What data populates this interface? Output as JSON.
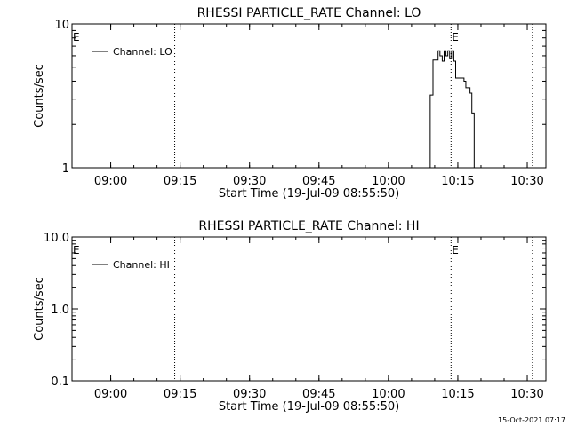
{
  "chart_data": [
    {
      "type": "line",
      "title": "RHESSI PARTICLE_RATE Channel: LO",
      "xlabel": "Start Time (19-Jul-09 08:55:50)",
      "ylabel": "Counts/sec",
      "y_scale": "log",
      "ylim": [
        1,
        10
      ],
      "xlim_minutes_from_start": [
        -4.2,
        98.2
      ],
      "x_tick_labels": [
        "09:00",
        "09:15",
        "09:30",
        "09:45",
        "10:00",
        "10:15",
        "10:30"
      ],
      "x_ticks_minutes": [
        4.17,
        19.17,
        34.17,
        49.17,
        64.17,
        79.17,
        94.17
      ],
      "y_tick_labels": [
        "1",
        "10"
      ],
      "y_ticks": [
        1,
        10
      ],
      "vlines_dotted_minutes": [
        18.0,
        77.7,
        95.3
      ],
      "event_markers": [
        {
          "label": "E",
          "x": -4.2
        },
        {
          "label": "E",
          "x": 77.7
        }
      ],
      "legend": {
        "label": "Channel: LO",
        "placement": "top-left"
      },
      "series": [
        {
          "name": "Channel: LO",
          "x": [
            72.5,
            73.2,
            73.8,
            74.4,
            74.9,
            75.3,
            75.8,
            76.2,
            76.6,
            77.0,
            77.4,
            77.8,
            78.3,
            78.7,
            79.2,
            79.6,
            80.1,
            80.5,
            80.9,
            81.4,
            81.8,
            82.2,
            82.7,
            83.3
          ],
          "y": [
            1.0,
            3.2,
            5.6,
            5.6,
            6.5,
            6.0,
            5.5,
            6.5,
            6.0,
            6.5,
            5.8,
            6.5,
            5.5,
            4.2,
            4.2,
            4.2,
            4.2,
            4.0,
            3.6,
            3.6,
            3.3,
            2.4,
            1.0,
            1.0
          ]
        }
      ]
    },
    {
      "type": "line",
      "title": "RHESSI PARTICLE_RATE Channel: HI",
      "xlabel": "Start Time (19-Jul-09 08:55:50)",
      "ylabel": "Counts/sec",
      "y_scale": "log",
      "ylim": [
        0.1,
        10
      ],
      "xlim_minutes_from_start": [
        -4.2,
        98.2
      ],
      "x_tick_labels": [
        "09:00",
        "09:15",
        "09:30",
        "09:45",
        "10:00",
        "10:15",
        "10:30"
      ],
      "x_ticks_minutes": [
        4.17,
        19.17,
        34.17,
        49.17,
        64.17,
        79.17,
        94.17
      ],
      "y_tick_labels": [
        "0.1",
        "1.0",
        "10.0"
      ],
      "y_ticks": [
        0.1,
        1,
        10
      ],
      "vlines_dotted_minutes": [
        18.0,
        77.7,
        95.3
      ],
      "event_markers": [
        {
          "label": "E",
          "x": -4.2
        },
        {
          "label": "E",
          "x": 77.7
        }
      ],
      "legend": {
        "label": "Channel: HI",
        "placement": "top-left"
      },
      "series": [
        {
          "name": "Channel: HI",
          "x": [],
          "y": []
        }
      ]
    }
  ],
  "footer": {
    "timestamp": "15-Oct-2021 07:17"
  }
}
